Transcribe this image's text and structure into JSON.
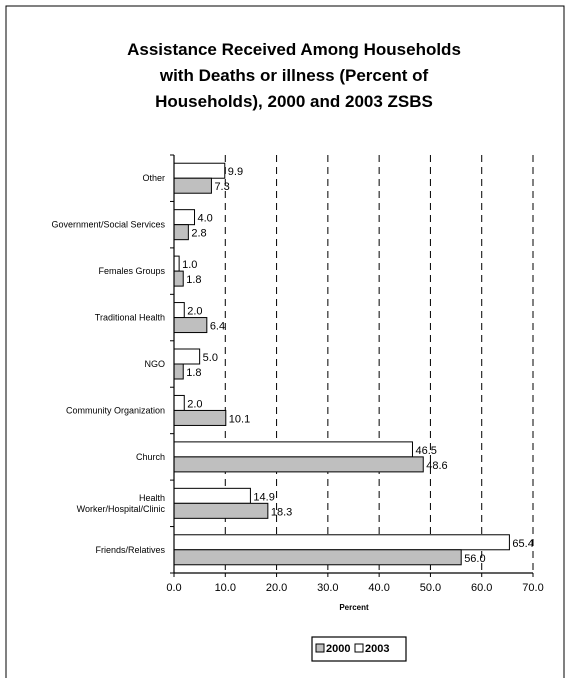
{
  "chart_data": {
    "type": "bar",
    "orientation": "horizontal",
    "title_lines": [
      "Assistance Received Among Households",
      "with Deaths or illness (Percent of",
      "Households), 2000 and 2003 ZSBS"
    ],
    "xlabel": "Percent",
    "ylabel": "",
    "xlim": [
      0,
      70
    ],
    "x_ticks": [
      "0.0",
      "10.0",
      "20.0",
      "30.0",
      "40.0",
      "50.0",
      "60.0",
      "70.0"
    ],
    "grid": "vertical dashed",
    "legend_position": "bottom-center",
    "categories": [
      "Other",
      "Government/Social Services",
      "Females Groups",
      "Traditional Health",
      "NGO",
      "Community Organization",
      "Church",
      [
        "Health",
        "Worker/Hospital/Clinic"
      ],
      "Friends/Relatives"
    ],
    "series": [
      {
        "name": "2000",
        "color": "#bfbfbf",
        "values": [
          7.3,
          2.8,
          1.8,
          6.4,
          1.8,
          10.1,
          48.6,
          18.3,
          56.0
        ],
        "labels": [
          "7.3",
          "2.8",
          "1.8",
          "6.4",
          "1.8",
          "10.1",
          "48.6",
          "18.3",
          "56.0"
        ]
      },
      {
        "name": "2003",
        "color": "#ffffff",
        "values": [
          9.9,
          4.0,
          1.0,
          2.0,
          5.0,
          2.0,
          46.5,
          14.9,
          65.4
        ],
        "labels": [
          "9.9",
          "4.0",
          "1.0",
          "2.0",
          "5.0",
          "2.0",
          "46.5",
          "14.9",
          "65.4"
        ]
      }
    ]
  }
}
